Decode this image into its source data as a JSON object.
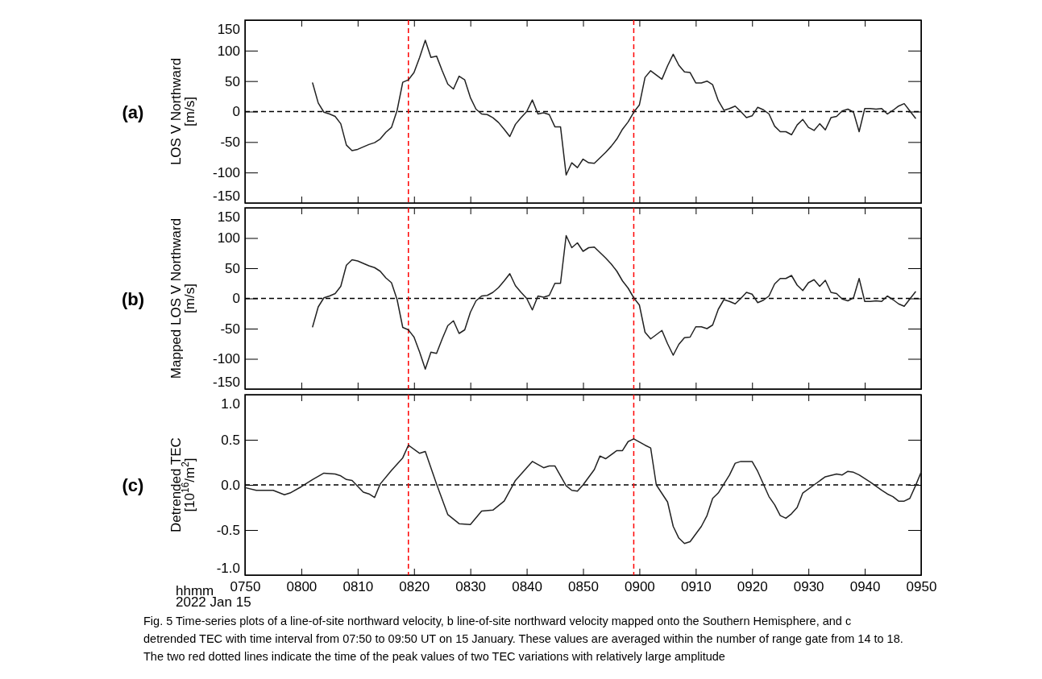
{
  "chart_data": [
    {
      "type": "line",
      "title": "(a)",
      "ylabel": "LOS V Northward\n[m/s]",
      "tick_labels": "y",
      "color": "#222222",
      "x": [
        "2022-01-15T08:02",
        "2022-01-15T08:03",
        "2022-01-15T08:04",
        "2022-01-15T08:05",
        "2022-01-15T08:06",
        "2022-01-15T08:07",
        "2022-01-15T08:08",
        "2022-01-15T08:09",
        "2022-01-15T08:10",
        "2022-01-15T08:11",
        "2022-01-15T08:12",
        "2022-01-15T08:13",
        "2022-01-15T08:14",
        "2022-01-15T08:15",
        "2022-01-15T08:16",
        "2022-01-15T08:17",
        "2022-01-15T08:18",
        "2022-01-15T08:19",
        "2022-01-15T08:20",
        "2022-01-15T08:21",
        "2022-01-15T08:22",
        "2022-01-15T08:23",
        "2022-01-15T08:24",
        "2022-01-15T08:25",
        "2022-01-15T08:26",
        "2022-01-15T08:27",
        "2022-01-15T08:28",
        "2022-01-15T08:29",
        "2022-01-15T08:30",
        "2022-01-15T08:31",
        "2022-01-15T08:32",
        "2022-01-15T08:33",
        "2022-01-15T08:34",
        "2022-01-15T08:35",
        "2022-01-15T08:36",
        "2022-01-15T08:37",
        "2022-01-15T08:38",
        "2022-01-15T08:39",
        "2022-01-15T08:40",
        "2022-01-15T08:41",
        "2022-01-15T08:42",
        "2022-01-15T08:43",
        "2022-01-15T08:44",
        "2022-01-15T08:45",
        "2022-01-15T08:46",
        "2022-01-15T08:47",
        "2022-01-15T08:48",
        "2022-01-15T08:49",
        "2022-01-15T08:50",
        "2022-01-15T08:51",
        "2022-01-15T08:52",
        "2022-01-15T08:53",
        "2022-01-15T08:54",
        "2022-01-15T08:55",
        "2022-01-15T08:56",
        "2022-01-15T08:57",
        "2022-01-15T08:58",
        "2022-01-15T08:59",
        "2022-01-15T09:00",
        "2022-01-15T09:01",
        "2022-01-15T09:02",
        "2022-01-15T09:03",
        "2022-01-15T09:04",
        "2022-01-15T09:05",
        "2022-01-15T09:06",
        "2022-01-15T09:07",
        "2022-01-15T09:08",
        "2022-01-15T09:09",
        "2022-01-15T09:10",
        "2022-01-15T09:11",
        "2022-01-15T09:12",
        "2022-01-15T09:13",
        "2022-01-15T09:14",
        "2022-01-15T09:15",
        "2022-01-15T09:16",
        "2022-01-15T09:17",
        "2022-01-15T09:18",
        "2022-01-15T09:19",
        "2022-01-15T09:20",
        "2022-01-15T09:21",
        "2022-01-15T09:22",
        "2022-01-15T09:23",
        "2022-01-15T09:24",
        "2022-01-15T09:25",
        "2022-01-15T09:26",
        "2022-01-15T09:27",
        "2022-01-15T09:28",
        "2022-01-15T09:29",
        "2022-01-15T09:30",
        "2022-01-15T09:31",
        "2022-01-15T09:32",
        "2022-01-15T09:33",
        "2022-01-15T09:34",
        "2022-01-15T09:35",
        "2022-01-15T09:36",
        "2022-01-15T09:37",
        "2022-01-15T09:38",
        "2022-01-15T09:39",
        "2022-01-15T09:40",
        "2022-01-15T09:41",
        "2022-01-15T09:42",
        "2022-01-15T09:43",
        "2022-01-15T09:44",
        "2022-01-15T09:45",
        "2022-01-15T09:46",
        "2022-01-15T09:47",
        "2022-01-15T09:48",
        "2022-01-15T09:49"
      ],
      "values": [
        47,
        14,
        -1,
        -4,
        -8,
        -20,
        -55,
        -64,
        -62,
        -58,
        -54,
        -51,
        -45,
        -34,
        -26,
        2,
        48,
        52,
        64,
        89,
        117,
        89,
        91,
        67,
        45,
        37,
        58,
        52,
        23,
        4,
        -4,
        -5,
        -10,
        -18,
        -29,
        -41,
        -21,
        -10,
        0,
        19,
        -4,
        -2,
        -5,
        -25,
        -25,
        -104,
        -84,
        -92,
        -78,
        -84,
        -85,
        -76,
        -67,
        -57,
        -45,
        -29,
        -17,
        -1,
        11,
        56,
        67,
        60,
        53,
        75,
        94,
        76,
        65,
        64,
        47,
        47,
        50,
        44,
        18,
        2,
        5,
        9,
        0,
        -10,
        -7,
        7,
        3,
        -4,
        -24,
        -33,
        -33,
        -38,
        -22,
        -13,
        -26,
        -31,
        -20,
        -30,
        -10,
        -8,
        1,
        4,
        -1,
        -33,
        5,
        5,
        4,
        5,
        -4,
        2,
        9,
        13,
        1,
        -11
      ],
      "xlim": [
        "2022-01-15T07:50",
        "2022-01-15T09:50"
      ],
      "xticks": [
        {
          "value": "2022-01-15T07:50",
          "label": null
        },
        {
          "value": "2022-01-15T08:00",
          "label": null
        },
        {
          "value": "2022-01-15T08:10",
          "label": null
        },
        {
          "value": "2022-01-15T08:20",
          "label": null
        },
        {
          "value": "2022-01-15T08:30",
          "label": null
        },
        {
          "value": "2022-01-15T08:40",
          "label": null
        },
        {
          "value": "2022-01-15T08:50",
          "label": null
        },
        {
          "value": "2022-01-15T09:00",
          "label": null
        },
        {
          "value": "2022-01-15T09:10",
          "label": null
        },
        {
          "value": "2022-01-15T09:20",
          "label": null
        },
        {
          "value": "2022-01-15T09:30",
          "label": null
        },
        {
          "value": "2022-01-15T09:40",
          "label": null
        },
        {
          "value": "2022-01-15T09:50",
          "label": null
        }
      ],
      "ylim": [
        -150,
        150
      ],
      "yticks": [
        -150,
        -100,
        -50,
        0,
        50,
        100,
        150
      ],
      "ref_lines": [
        {
          "axis": "y",
          "value": 0,
          "color": "#000000",
          "line_style": "dashed"
        },
        {
          "axis": "x",
          "value": "2022-01-15T08:19",
          "color": "#ff0000",
          "line_style": "dashed"
        },
        {
          "axis": "x",
          "value": "2022-01-15T08:59",
          "color": "#ff0000",
          "line_style": "dashed"
        }
      ]
    },
    {
      "type": "line",
      "title": "(b)",
      "ylabel": "Mapped LOS V Northward\n[m/s]",
      "tick_labels": "y",
      "color": "#222222",
      "x": [
        "2022-01-15T08:02",
        "2022-01-15T08:03",
        "2022-01-15T08:04",
        "2022-01-15T08:05",
        "2022-01-15T08:06",
        "2022-01-15T08:07",
        "2022-01-15T08:08",
        "2022-01-15T08:09",
        "2022-01-15T08:10",
        "2022-01-15T08:11",
        "2022-01-15T08:12",
        "2022-01-15T08:13",
        "2022-01-15T08:14",
        "2022-01-15T08:15",
        "2022-01-15T08:16",
        "2022-01-15T08:17",
        "2022-01-15T08:18",
        "2022-01-15T08:19",
        "2022-01-15T08:20",
        "2022-01-15T08:21",
        "2022-01-15T08:22",
        "2022-01-15T08:23",
        "2022-01-15T08:24",
        "2022-01-15T08:25",
        "2022-01-15T08:26",
        "2022-01-15T08:27",
        "2022-01-15T08:28",
        "2022-01-15T08:29",
        "2022-01-15T08:30",
        "2022-01-15T08:31",
        "2022-01-15T08:32",
        "2022-01-15T08:33",
        "2022-01-15T08:34",
        "2022-01-15T08:35",
        "2022-01-15T08:36",
        "2022-01-15T08:37",
        "2022-01-15T08:38",
        "2022-01-15T08:39",
        "2022-01-15T08:40",
        "2022-01-15T08:41",
        "2022-01-15T08:42",
        "2022-01-15T08:43",
        "2022-01-15T08:44",
        "2022-01-15T08:45",
        "2022-01-15T08:46",
        "2022-01-15T08:47",
        "2022-01-15T08:48",
        "2022-01-15T08:49",
        "2022-01-15T08:50",
        "2022-01-15T08:51",
        "2022-01-15T08:52",
        "2022-01-15T08:53",
        "2022-01-15T08:54",
        "2022-01-15T08:55",
        "2022-01-15T08:56",
        "2022-01-15T08:57",
        "2022-01-15T08:58",
        "2022-01-15T08:59",
        "2022-01-15T09:00",
        "2022-01-15T09:01",
        "2022-01-15T09:02",
        "2022-01-15T09:03",
        "2022-01-15T09:04",
        "2022-01-15T09:05",
        "2022-01-15T09:06",
        "2022-01-15T09:07",
        "2022-01-15T09:08",
        "2022-01-15T09:09",
        "2022-01-15T09:10",
        "2022-01-15T09:11",
        "2022-01-15T09:12",
        "2022-01-15T09:13",
        "2022-01-15T09:14",
        "2022-01-15T09:15",
        "2022-01-15T09:16",
        "2022-01-15T09:17",
        "2022-01-15T09:18",
        "2022-01-15T09:19",
        "2022-01-15T09:20",
        "2022-01-15T09:21",
        "2022-01-15T09:22",
        "2022-01-15T09:23",
        "2022-01-15T09:24",
        "2022-01-15T09:25",
        "2022-01-15T09:26",
        "2022-01-15T09:27",
        "2022-01-15T09:28",
        "2022-01-15T09:29",
        "2022-01-15T09:30",
        "2022-01-15T09:31",
        "2022-01-15T09:32",
        "2022-01-15T09:33",
        "2022-01-15T09:34",
        "2022-01-15T09:35",
        "2022-01-15T09:36",
        "2022-01-15T09:37",
        "2022-01-15T09:38",
        "2022-01-15T09:39",
        "2022-01-15T09:40",
        "2022-01-15T09:41",
        "2022-01-15T09:42",
        "2022-01-15T09:43",
        "2022-01-15T09:44",
        "2022-01-15T09:45",
        "2022-01-15T09:46",
        "2022-01-15T09:47",
        "2022-01-15T09:48",
        "2022-01-15T09:49"
      ],
      "values": [
        -47,
        -14,
        1,
        4,
        8,
        20,
        55,
        64,
        62,
        58,
        54,
        51,
        45,
        34,
        26,
        -2,
        -48,
        -52,
        -64,
        -89,
        -117,
        -89,
        -91,
        -67,
        -45,
        -37,
        -58,
        -52,
        -23,
        -4,
        4,
        5,
        10,
        18,
        29,
        41,
        21,
        10,
        0,
        -19,
        4,
        2,
        5,
        25,
        25,
        104,
        84,
        92,
        78,
        84,
        85,
        76,
        67,
        57,
        45,
        29,
        17,
        1,
        -11,
        -56,
        -67,
        -60,
        -53,
        -75,
        -94,
        -76,
        -65,
        -64,
        -47,
        -47,
        -50,
        -44,
        -18,
        -2,
        -5,
        -9,
        0,
        10,
        7,
        -7,
        -3,
        4,
        24,
        33,
        33,
        38,
        22,
        13,
        26,
        31,
        20,
        30,
        10,
        8,
        -1,
        -4,
        1,
        33,
        -5,
        -5,
        -4,
        -5,
        4,
        -2,
        -9,
        -13,
        -1,
        11
      ],
      "xlim": [
        "2022-01-15T07:50",
        "2022-01-15T09:50"
      ],
      "xticks": [
        {
          "value": "2022-01-15T07:50",
          "label": null
        },
        {
          "value": "2022-01-15T08:00",
          "label": null
        },
        {
          "value": "2022-01-15T08:10",
          "label": null
        },
        {
          "value": "2022-01-15T08:20",
          "label": null
        },
        {
          "value": "2022-01-15T08:30",
          "label": null
        },
        {
          "value": "2022-01-15T08:40",
          "label": null
        },
        {
          "value": "2022-01-15T08:50",
          "label": null
        },
        {
          "value": "2022-01-15T09:00",
          "label": null
        },
        {
          "value": "2022-01-15T09:10",
          "label": null
        },
        {
          "value": "2022-01-15T09:20",
          "label": null
        },
        {
          "value": "2022-01-15T09:30",
          "label": null
        },
        {
          "value": "2022-01-15T09:40",
          "label": null
        },
        {
          "value": "2022-01-15T09:50",
          "label": null
        }
      ],
      "ylim": [
        -150,
        150
      ],
      "yticks": [
        -150,
        -100,
        -50,
        0,
        50,
        100,
        150
      ],
      "ref_lines": [
        {
          "axis": "y",
          "value": 0,
          "color": "#000000",
          "line_style": "dashed"
        },
        {
          "axis": "x",
          "value": "2022-01-15T08:19",
          "color": "#ff0000",
          "line_style": "dashed"
        },
        {
          "axis": "x",
          "value": "2022-01-15T08:59",
          "color": "#ff0000",
          "line_style": "dashed"
        }
      ]
    },
    {
      "type": "line",
      "title": "(c)",
      "ylabel": "Detrended TEC\n[10$^{16}$/m$^{2}$]",
      "xlabel": "hhmm",
      "color": "#222222",
      "x": [
        "2022-01-15T07:50",
        "2022-01-15T07:52",
        "2022-01-15T07:55",
        "2022-01-15T07:57",
        "2022-01-15T07:58",
        "2022-01-15T08:00",
        "2022-01-15T08:02",
        "2022-01-15T08:04",
        "2022-01-15T08:06",
        "2022-01-15T08:07",
        "2022-01-15T08:08",
        "2022-01-15T08:09",
        "2022-01-15T08:11",
        "2022-01-15T08:12",
        "2022-01-15T08:13",
        "2022-01-15T08:14",
        "2022-01-15T08:16",
        "2022-01-15T08:18",
        "2022-01-15T08:19",
        "2022-01-15T08:21",
        "2022-01-15T08:22",
        "2022-01-15T08:24",
        "2022-01-15T08:26",
        "2022-01-15T08:28",
        "2022-01-15T08:30",
        "2022-01-15T08:32",
        "2022-01-15T08:34",
        "2022-01-15T08:36",
        "2022-01-15T08:38",
        "2022-01-15T08:40",
        "2022-01-15T08:41",
        "2022-01-15T08:43",
        "2022-01-15T08:44",
        "2022-01-15T08:45",
        "2022-01-15T08:47",
        "2022-01-15T08:48",
        "2022-01-15T08:49",
        "2022-01-15T08:50",
        "2022-01-15T08:52",
        "2022-01-15T08:53",
        "2022-01-15T08:54",
        "2022-01-15T08:56",
        "2022-01-15T08:57",
        "2022-01-15T08:58",
        "2022-01-15T08:59",
        "2022-01-15T09:01",
        "2022-01-15T09:02",
        "2022-01-15T09:03",
        "2022-01-15T09:05",
        "2022-01-15T09:06",
        "2022-01-15T09:07",
        "2022-01-15T09:08",
        "2022-01-15T09:09",
        "2022-01-15T09:11",
        "2022-01-15T09:12",
        "2022-01-15T09:13",
        "2022-01-15T09:14",
        "2022-01-15T09:16",
        "2022-01-15T09:17",
        "2022-01-15T09:18",
        "2022-01-15T09:20",
        "2022-01-15T09:21",
        "2022-01-15T09:23",
        "2022-01-15T09:24",
        "2022-01-15T09:25",
        "2022-01-15T09:26",
        "2022-01-15T09:27",
        "2022-01-15T09:28",
        "2022-01-15T09:29",
        "2022-01-15T09:31",
        "2022-01-15T09:33",
        "2022-01-15T09:35",
        "2022-01-15T09:36",
        "2022-01-15T09:37",
        "2022-01-15T09:38",
        "2022-01-15T09:39",
        "2022-01-15T09:41",
        "2022-01-15T09:43",
        "2022-01-15T09:44",
        "2022-01-15T09:45",
        "2022-01-15T09:46",
        "2022-01-15T09:47",
        "2022-01-15T09:48",
        "2022-01-15T09:49",
        "2022-01-15T09:50"
      ],
      "values": [
        -0.03,
        -0.06,
        -0.06,
        -0.11,
        -0.09,
        -0.02,
        0.06,
        0.13,
        0.12,
        0.1,
        0.06,
        0.05,
        -0.08,
        -0.1,
        -0.14,
        0.01,
        0.16,
        0.3,
        0.44,
        0.35,
        0.37,
        0.01,
        -0.33,
        -0.43,
        -0.44,
        -0.29,
        -0.28,
        -0.18,
        0.05,
        0.19,
        0.26,
        0.19,
        0.21,
        0.21,
        -0.01,
        -0.06,
        -0.07,
        0.0,
        0.17,
        0.32,
        0.29,
        0.38,
        0.38,
        0.48,
        0.51,
        0.44,
        0.41,
        0.0,
        -0.19,
        -0.46,
        -0.59,
        -0.65,
        -0.63,
        -0.46,
        -0.34,
        -0.15,
        -0.09,
        0.11,
        0.24,
        0.26,
        0.26,
        0.15,
        -0.13,
        -0.22,
        -0.34,
        -0.37,
        -0.32,
        -0.25,
        -0.09,
        0.0,
        0.09,
        0.12,
        0.11,
        0.15,
        0.14,
        0.11,
        0.03,
        -0.06,
        -0.1,
        -0.13,
        -0.18,
        -0.18,
        -0.15,
        -0.01,
        0.14
      ],
      "xlim": [
        "2022-01-15T07:50",
        "2022-01-15T09:50"
      ],
      "xticks": [
        {
          "value": "2022-01-15T07:50",
          "label": "0750"
        },
        {
          "value": "2022-01-15T08:00",
          "label": "0800"
        },
        {
          "value": "2022-01-15T08:10",
          "label": "0810"
        },
        {
          "value": "2022-01-15T08:20",
          "label": "0820"
        },
        {
          "value": "2022-01-15T08:30",
          "label": "0830"
        },
        {
          "value": "2022-01-15T08:40",
          "label": "0840"
        },
        {
          "value": "2022-01-15T08:50",
          "label": "0850"
        },
        {
          "value": "2022-01-15T09:00",
          "label": "0900"
        },
        {
          "value": "2022-01-15T09:10",
          "label": "0910"
        },
        {
          "value": "2022-01-15T09:20",
          "label": "0920"
        },
        {
          "value": "2022-01-15T09:30",
          "label": "0930"
        },
        {
          "value": "2022-01-15T09:40",
          "label": "0940"
        },
        {
          "value": "2022-01-15T09:50",
          "label": "0950"
        }
      ],
      "ylim": [
        -1,
        1
      ],
      "yticks": [
        {
          "value": -1,
          "label": "-1.0"
        },
        {
          "value": -0.5,
          "label": "-0.5"
        },
        {
          "value": 0,
          "label": "0.0"
        },
        {
          "value": 0.5,
          "label": "0.5"
        },
        {
          "value": 1,
          "label": "1.0"
        }
      ],
      "ref_lines": [
        {
          "axis": "y",
          "value": 0,
          "color": "#000000",
          "line_style": "dashed"
        },
        {
          "axis": "x",
          "value": "2022-01-15T08:19",
          "color": "#ff0000",
          "line_style": "dashed"
        },
        {
          "axis": "x",
          "value": "2022-01-15T08:59",
          "color": "#ff0000",
          "line_style": "dashed"
        }
      ],
      "annotations": [
        "2022 Jan 15",
        "Fig. 5  Time-series plots of a line-of-site northward velocity, b line-of-site northward velocity mapped onto the Southern Hemisphere, and c",
        "detrended TEC with time interval from 07:50 to 09:50 UT on 15 January. These values are averaged within the number of range gate from 14 to 18.",
        "The two red dotted lines indicate the time of the peak values of two TEC variations with relatively large amplitude"
      ]
    }
  ]
}
